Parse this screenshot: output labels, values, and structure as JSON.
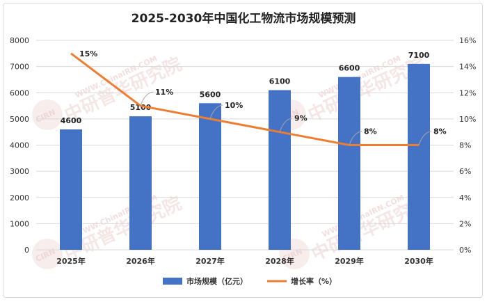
{
  "title": "2025-2030年中国化工物流市场规模预测",
  "watermark": {
    "brand": "中研普华研究院",
    "site": "WWW.ChinaIRN.COM",
    "logo": "CIRN"
  },
  "chart_data": {
    "type": "bar",
    "title": "2025-2030年中国化工物流市场规模预测",
    "categories": [
      "2025年",
      "2026年",
      "2027年",
      "2028年",
      "2029年",
      "2030年"
    ],
    "series": [
      {
        "name": "市场规模（亿元）",
        "type": "bar",
        "axis": "left",
        "color": "#4472c4",
        "values": [
          4600,
          5100,
          5600,
          6100,
          6600,
          7100
        ]
      },
      {
        "name": "增长率（%）",
        "type": "line",
        "axis": "right",
        "color": "#ed7d31",
        "values": [
          15,
          11,
          10,
          9,
          8,
          8
        ],
        "labels": [
          "15%",
          "11%",
          "10%",
          "9%",
          "8%",
          "8%"
        ]
      }
    ],
    "y_left": {
      "min": 0,
      "max": 8000,
      "step": 1000,
      "ticks": [
        "0",
        "1000",
        "2000",
        "3000",
        "4000",
        "5000",
        "6000",
        "7000",
        "8000"
      ]
    },
    "y_right": {
      "min": 0,
      "max": 16,
      "step": 2,
      "ticks": [
        "0%",
        "2%",
        "4%",
        "6%",
        "8%",
        "10%",
        "12%",
        "14%",
        "16%"
      ]
    },
    "grid": true,
    "legend_position": "bottom"
  }
}
